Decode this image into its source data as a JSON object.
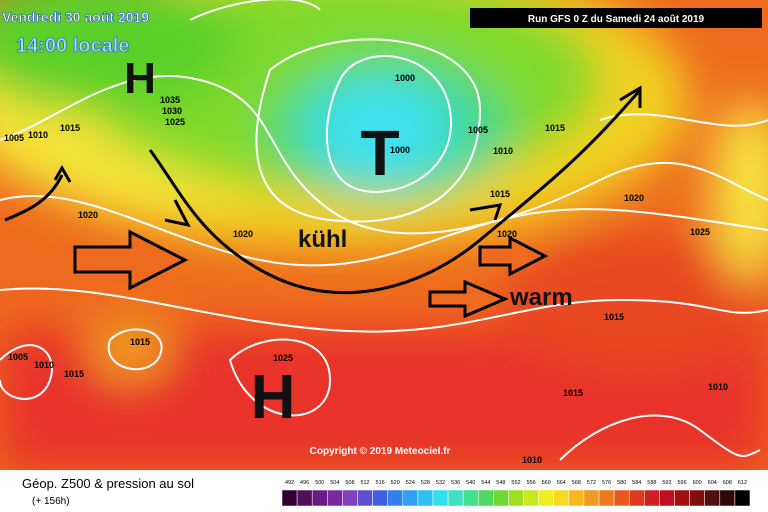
{
  "header": {
    "date": "Vendredi 30 août 2019",
    "time": "14:00 locale",
    "run": "Run GFS 0 Z du Samedi 24 août 2019"
  },
  "map": {
    "highs": [
      "H",
      "H"
    ],
    "low": "T",
    "annotations": [
      "kühl",
      "warm"
    ],
    "isobar_labels": [
      "1000",
      "1000",
      "1005",
      "1005",
      "1010",
      "1015",
      "1035",
      "1030",
      "1025",
      "1010",
      "1015",
      "1015",
      "1020",
      "1020",
      "1020",
      "1020",
      "1025",
      "1015",
      "1005",
      "1010",
      "1015",
      "1025",
      "1015",
      "1015",
      "1010",
      "1010"
    ],
    "copyright": "Copyright © 2019 Meteociel.fr"
  },
  "footer": {
    "title": "Géop. Z500 & pression au sol",
    "lead": "(+ 156h)",
    "scale": [
      "492",
      "496",
      "500",
      "504",
      "508",
      "512",
      "516",
      "520",
      "524",
      "528",
      "532",
      "536",
      "540",
      "544",
      "548",
      "552",
      "556",
      "560",
      "564",
      "568",
      "572",
      "576",
      "580",
      "584",
      "588",
      "592",
      "596",
      "600",
      "604",
      "608",
      "612"
    ]
  }
}
